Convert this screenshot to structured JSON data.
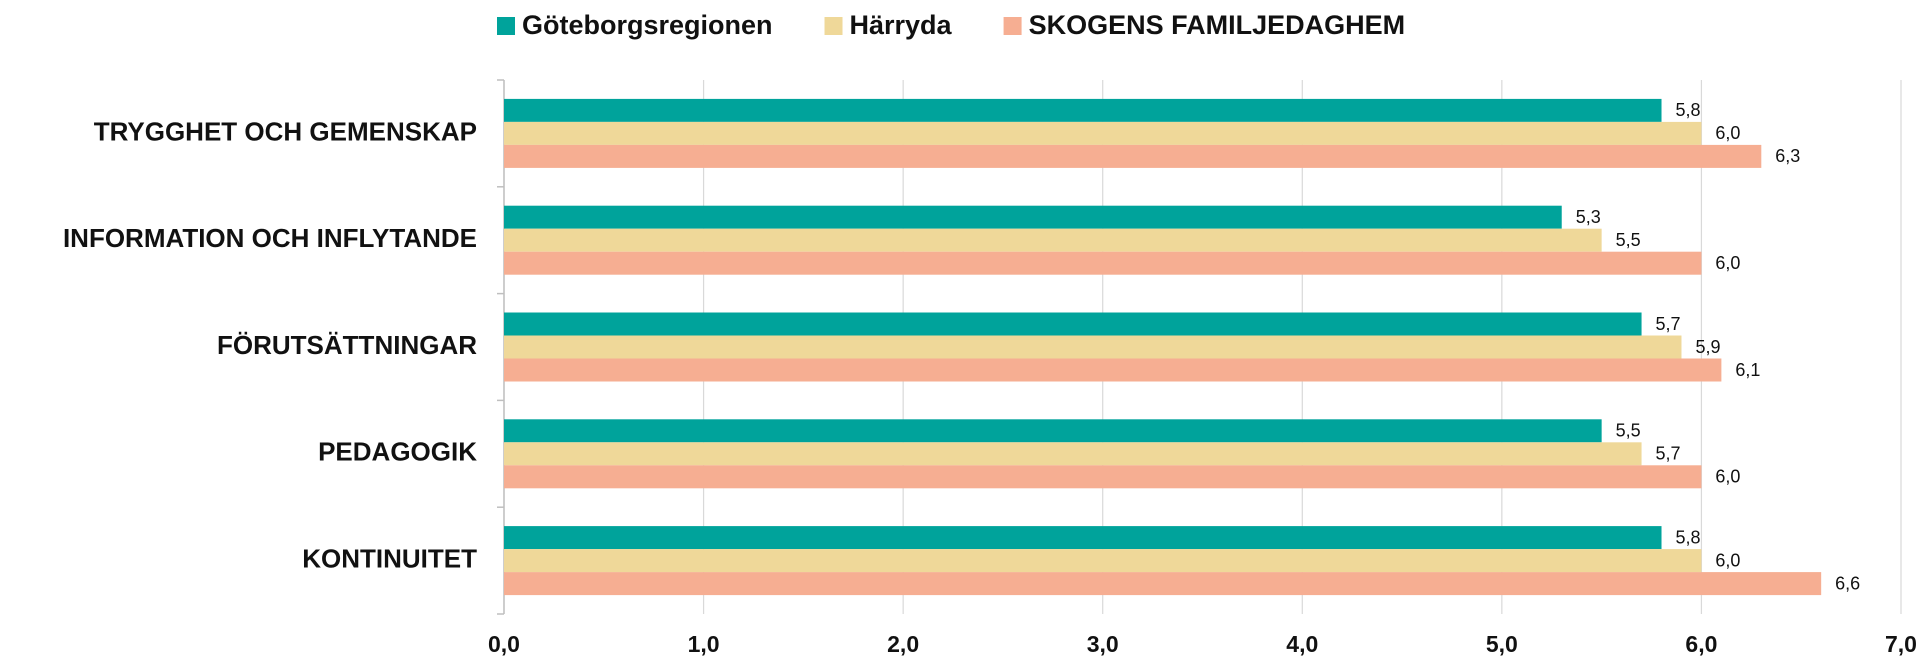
{
  "chart_data": {
    "type": "hbar",
    "categories": [
      "TRYGGHET OCH GEMENSKAP",
      "INFORMATION OCH INFLYTANDE",
      "FÖRUTSÄTTNINGAR",
      "PEDAGOGIK",
      "KONTINUITET"
    ],
    "series": [
      {
        "name": "Göteborgsregionen",
        "color": "#00a39b",
        "values": [
          5.8,
          5.3,
          5.7,
          5.5,
          5.8
        ],
        "value_labels": [
          "5,8",
          "5,3",
          "5,7",
          "5,5",
          "5,8"
        ]
      },
      {
        "name": "Härryda",
        "color": "#efd899",
        "values": [
          6.0,
          5.5,
          5.9,
          5.7,
          6.0
        ],
        "value_labels": [
          "6,0",
          "5,5",
          "5,9",
          "5,7",
          "6,0"
        ]
      },
      {
        "name": "SKOGENS FAMILJEDAGHEM",
        "color": "#f6ae92",
        "values": [
          6.3,
          6.0,
          6.1,
          6.0,
          6.6
        ],
        "value_labels": [
          "6,3",
          "6,0",
          "6,1",
          "6,0",
          "6,6"
        ]
      }
    ],
    "xlim": [
      0,
      7
    ],
    "xticks": [
      {
        "value": 0,
        "label": "0,0"
      },
      {
        "value": 1,
        "label": "1,0"
      },
      {
        "value": 2,
        "label": "2,0"
      },
      {
        "value": 3,
        "label": "3,0"
      },
      {
        "value": 4,
        "label": "4,0"
      },
      {
        "value": 5,
        "label": "5,0"
      },
      {
        "value": 6,
        "label": "6,0"
      },
      {
        "value": 7,
        "label": "7,0"
      }
    ],
    "grid": true,
    "legend": "top"
  }
}
